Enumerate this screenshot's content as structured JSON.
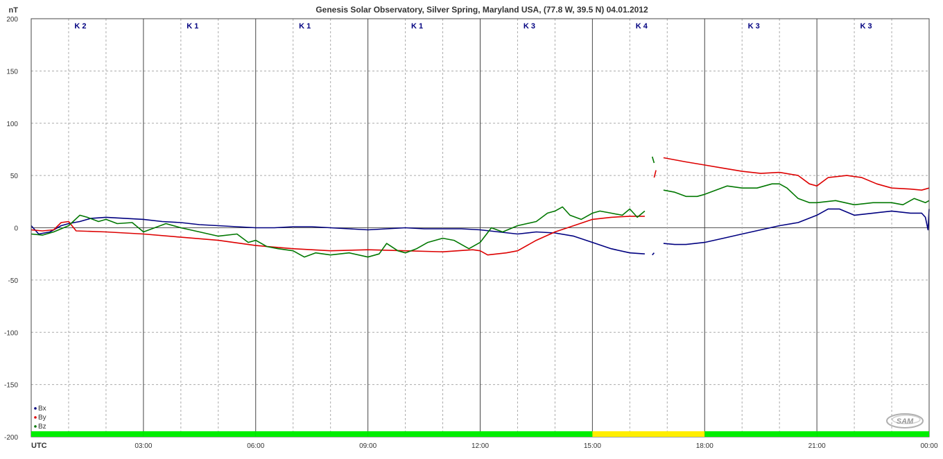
{
  "chart_data": {
    "type": "line",
    "title": "Genesis Solar Observatory, Silver Spring, Maryland USA, (77.8 W, 39.5 N)  04.01.2012",
    "ylabel": "nT",
    "xlabel": "UTC",
    "ylim": [
      -200,
      200
    ],
    "xlim": [
      0,
      24
    ],
    "yticks": [
      200,
      150,
      100,
      50,
      0,
      -50,
      -100,
      -150,
      -200
    ],
    "xticks": [
      {
        "hour": 3,
        "label": "03:00"
      },
      {
        "hour": 6,
        "label": "06:00"
      },
      {
        "hour": 9,
        "label": "09:00"
      },
      {
        "hour": 12,
        "label": "12:00"
      },
      {
        "hour": 15,
        "label": "15:00"
      },
      {
        "hour": 18,
        "label": "18:00"
      },
      {
        "hour": 21,
        "label": "21:00"
      },
      {
        "hour": 24,
        "label": "00:00"
      }
    ],
    "grid": true,
    "legend_position": "bottom-left",
    "k_indices": [
      "K 2",
      "K 1",
      "K 1",
      "K 1",
      "K 3",
      "K 4",
      "K 3",
      "K 3"
    ],
    "activity_bar": [
      "#00ee00",
      "#00ee00",
      "#00ee00",
      "#00ee00",
      "#00ee00",
      "#ffee00",
      "#00ee00",
      "#00ee00"
    ],
    "series": [
      {
        "name": "Bx",
        "color": "#000080",
        "points": [
          [
            0.0,
            2
          ],
          [
            0.2,
            -6
          ],
          [
            0.5,
            -4
          ],
          [
            0.8,
            2
          ],
          [
            1.0,
            4
          ],
          [
            1.3,
            6
          ],
          [
            1.6,
            9
          ],
          [
            2.0,
            10
          ],
          [
            2.5,
            9
          ],
          [
            3.0,
            8
          ],
          [
            3.5,
            6
          ],
          [
            4.0,
            5
          ],
          [
            4.5,
            3
          ],
          [
            5.0,
            2
          ],
          [
            5.5,
            1
          ],
          [
            6.0,
            0
          ],
          [
            6.5,
            0
          ],
          [
            7.0,
            1
          ],
          [
            7.5,
            1
          ],
          [
            8.0,
            0
          ],
          [
            8.5,
            -1
          ],
          [
            9.0,
            -2
          ],
          [
            9.5,
            -1
          ],
          [
            10.0,
            0
          ],
          [
            10.5,
            -1
          ],
          [
            11.0,
            -1
          ],
          [
            11.5,
            -1
          ],
          [
            12.0,
            -2
          ],
          [
            12.5,
            -4
          ],
          [
            13.0,
            -6
          ],
          [
            13.5,
            -4
          ],
          [
            14.0,
            -5
          ],
          [
            14.5,
            -8
          ],
          [
            15.0,
            -14
          ],
          [
            15.5,
            -20
          ],
          [
            16.0,
            -24
          ],
          [
            16.4,
            -25
          ],
          null,
          [
            16.6,
            -26
          ],
          [
            16.65,
            -24
          ],
          null,
          [
            16.9,
            -15
          ],
          [
            17.2,
            -16
          ],
          [
            17.5,
            -16
          ],
          [
            18.0,
            -14
          ],
          [
            18.5,
            -10
          ],
          [
            19.0,
            -6
          ],
          [
            19.5,
            -2
          ],
          [
            20.0,
            2
          ],
          [
            20.5,
            5
          ],
          [
            21.0,
            12
          ],
          [
            21.3,
            18
          ],
          [
            21.6,
            18
          ],
          [
            22.0,
            12
          ],
          [
            22.5,
            14
          ],
          [
            23.0,
            16
          ],
          [
            23.5,
            14
          ],
          [
            23.8,
            14
          ],
          [
            23.9,
            10
          ],
          [
            23.97,
            -2
          ],
          [
            24.0,
            18
          ]
        ]
      },
      {
        "name": "By",
        "color": "#dd0000",
        "points": [
          [
            0.0,
            -2
          ],
          [
            0.3,
            -3
          ],
          [
            0.6,
            -2
          ],
          [
            0.8,
            5
          ],
          [
            1.0,
            6
          ],
          [
            1.2,
            -3
          ],
          [
            2.0,
            -4
          ],
          [
            3.0,
            -6
          ],
          [
            4.0,
            -9
          ],
          [
            5.0,
            -12
          ],
          [
            6.0,
            -17
          ],
          [
            7.0,
            -20
          ],
          [
            8.0,
            -22
          ],
          [
            9.0,
            -21
          ],
          [
            10.0,
            -22
          ],
          [
            11.0,
            -23
          ],
          [
            11.8,
            -21
          ],
          [
            12.0,
            -22
          ],
          [
            12.2,
            -26
          ],
          [
            12.7,
            -24
          ],
          [
            13.0,
            -22
          ],
          [
            13.5,
            -12
          ],
          [
            14.0,
            -4
          ],
          [
            14.5,
            2
          ],
          [
            15.0,
            8
          ],
          [
            15.5,
            10
          ],
          [
            16.0,
            11
          ],
          [
            16.4,
            11
          ],
          null,
          [
            16.65,
            48
          ],
          [
            16.7,
            55
          ],
          null,
          [
            16.9,
            67
          ],
          [
            17.5,
            63
          ],
          [
            18.0,
            60
          ],
          [
            18.5,
            57
          ],
          [
            19.0,
            54
          ],
          [
            19.5,
            52
          ],
          [
            20.0,
            53
          ],
          [
            20.5,
            50
          ],
          [
            20.8,
            42
          ],
          [
            21.0,
            40
          ],
          [
            21.3,
            48
          ],
          [
            21.8,
            50
          ],
          [
            22.2,
            48
          ],
          [
            22.6,
            42
          ],
          [
            23.0,
            38
          ],
          [
            23.5,
            37
          ],
          [
            23.8,
            36
          ],
          [
            24.0,
            38
          ]
        ]
      },
      {
        "name": "Bz",
        "color": "#007700",
        "points": [
          [
            0.0,
            -6
          ],
          [
            0.3,
            -7
          ],
          [
            0.6,
            -4
          ],
          [
            1.0,
            2
          ],
          [
            1.3,
            12
          ],
          [
            1.5,
            10
          ],
          [
            1.8,
            6
          ],
          [
            2.0,
            8
          ],
          [
            2.3,
            4
          ],
          [
            2.7,
            5
          ],
          [
            3.0,
            -4
          ],
          [
            3.3,
            0
          ],
          [
            3.6,
            4
          ],
          [
            4.0,
            0
          ],
          [
            4.5,
            -4
          ],
          [
            5.0,
            -8
          ],
          [
            5.5,
            -6
          ],
          [
            5.8,
            -14
          ],
          [
            6.0,
            -12
          ],
          [
            6.3,
            -18
          ],
          [
            6.6,
            -20
          ],
          [
            7.0,
            -22
          ],
          [
            7.3,
            -28
          ],
          [
            7.6,
            -24
          ],
          [
            8.0,
            -26
          ],
          [
            8.5,
            -24
          ],
          [
            9.0,
            -28
          ],
          [
            9.3,
            -25
          ],
          [
            9.5,
            -15
          ],
          [
            9.8,
            -22
          ],
          [
            10.0,
            -24
          ],
          [
            10.3,
            -20
          ],
          [
            10.6,
            -14
          ],
          [
            11.0,
            -10
          ],
          [
            11.3,
            -12
          ],
          [
            11.7,
            -20
          ],
          [
            12.0,
            -14
          ],
          [
            12.3,
            0
          ],
          [
            12.6,
            -4
          ],
          [
            13.0,
            2
          ],
          [
            13.5,
            6
          ],
          [
            13.8,
            14
          ],
          [
            14.0,
            16
          ],
          [
            14.2,
            20
          ],
          [
            14.4,
            12
          ],
          [
            14.7,
            8
          ],
          [
            15.0,
            14
          ],
          [
            15.2,
            16
          ],
          [
            15.5,
            14
          ],
          [
            15.8,
            12
          ],
          [
            16.0,
            18
          ],
          [
            16.2,
            10
          ],
          [
            16.4,
            16
          ],
          null,
          [
            16.6,
            68
          ],
          [
            16.65,
            62
          ],
          null,
          [
            16.9,
            36
          ],
          [
            17.2,
            34
          ],
          [
            17.5,
            30
          ],
          [
            17.8,
            30
          ],
          [
            18.0,
            32
          ],
          [
            18.3,
            36
          ],
          [
            18.6,
            40
          ],
          [
            19.0,
            38
          ],
          [
            19.4,
            38
          ],
          [
            19.8,
            42
          ],
          [
            20.0,
            42
          ],
          [
            20.2,
            38
          ],
          [
            20.5,
            28
          ],
          [
            20.8,
            24
          ],
          [
            21.0,
            24
          ],
          [
            21.5,
            26
          ],
          [
            22.0,
            22
          ],
          [
            22.5,
            24
          ],
          [
            23.0,
            24
          ],
          [
            23.3,
            22
          ],
          [
            23.6,
            28
          ],
          [
            23.9,
            24
          ],
          [
            24.0,
            26
          ]
        ]
      }
    ]
  }
}
